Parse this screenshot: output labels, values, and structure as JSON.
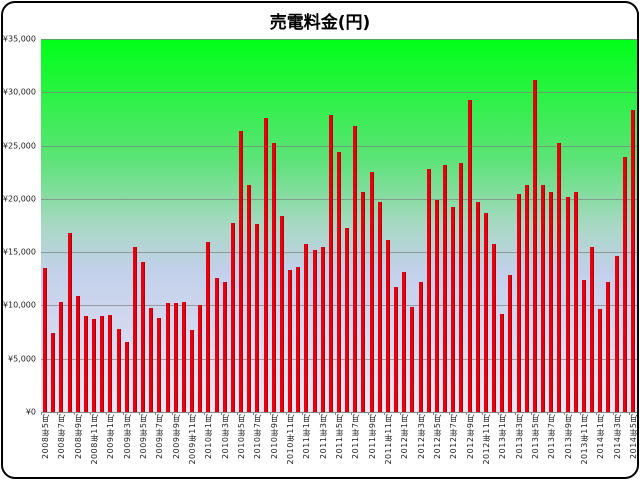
{
  "chart_data": {
    "type": "bar",
    "title": "売電料金(円)",
    "xlabel": "",
    "ylabel": "",
    "ylim": [
      0,
      35000
    ],
    "yticks": [
      "¥0",
      "¥5,000",
      "¥10,000",
      "¥15,000",
      "¥20,000",
      "¥25,000",
      "¥30,000",
      "¥35,000"
    ],
    "grid": true,
    "legend": "none",
    "bar_color": "#e8000e",
    "background_gradient": [
      "#00ff18",
      "#c2d0ea",
      "#ebe6f2"
    ],
    "categories": [
      "2008年5月",
      "2008年6月",
      "2008年7月",
      "2008年8月",
      "2008年9月",
      "2008年10月",
      "2008年11月",
      "2008年12月",
      "2009年1月",
      "2009年2月",
      "2009年3月",
      "2009年4月",
      "2009年5月",
      "2009年6月",
      "2009年7月",
      "2009年8月",
      "2009年9月",
      "2009年10月",
      "2009年11月",
      "2009年12月",
      "2010年1月",
      "2010年2月",
      "2010年3月",
      "2010年4月",
      "2010年5月",
      "2010年6月",
      "2010年7月",
      "2010年8月",
      "2010年9月",
      "2010年10月",
      "2010年11月",
      "2010年12月",
      "2011年1月",
      "2011年2月",
      "2011年3月",
      "2011年4月",
      "2011年5月",
      "2011年6月",
      "2011年7月",
      "2011年8月",
      "2011年9月",
      "2011年10月",
      "2011年11月",
      "2011年12月",
      "2012年1月",
      "2012年2月",
      "2012年3月",
      "2012年4月",
      "2012年5月",
      "2012年6月",
      "2012年7月",
      "2012年8月",
      "2012年9月",
      "2012年10月",
      "2012年11月",
      "2012年12月",
      "2013年1月",
      "2013年2月",
      "2013年3月",
      "2013年4月",
      "2013年5月",
      "2013年6月",
      "2013年7月",
      "2013年8月",
      "2013年9月",
      "2013年10月",
      "2013年11月",
      "2013年12月",
      "2014年1月",
      "2014年2月",
      "2014年3月",
      "2014年4月",
      "2014年5月"
    ],
    "values": [
      13500,
      7400,
      10300,
      16800,
      10900,
      9000,
      8700,
      9000,
      9100,
      7800,
      6600,
      15500,
      14100,
      9800,
      8800,
      10200,
      10200,
      10300,
      7700,
      10000,
      16000,
      12600,
      12200,
      17700,
      26400,
      21300,
      17600,
      27600,
      25200,
      18400,
      13300,
      13600,
      15800,
      15200,
      15500,
      27900,
      24400,
      17300,
      26800,
      20600,
      22500,
      19700,
      16100,
      11700,
      13100,
      9900,
      12200,
      22800,
      19900,
      23200,
      19200,
      23400,
      29300,
      19700,
      18700,
      15800,
      9200,
      12900,
      20500,
      21300,
      31200,
      21300,
      20600,
      25200,
      20200,
      20600,
      12400,
      15500,
      9700,
      12200,
      14600,
      23900,
      28300
    ],
    "xtick_labels": [
      "2008年5月",
      "2008年7月",
      "2008年9月",
      "2008年11月",
      "2009年1月",
      "2009年3月",
      "2009年5月",
      "2009年7月",
      "2009年9月",
      "2009年11月",
      "2010年1月",
      "2010年3月",
      "2010年5月",
      "2010年7月",
      "2010年9月",
      "2010年11月",
      "2011年1月",
      "2011年3月",
      "2011年5月",
      "2011年7月",
      "2011年9月",
      "2011年11月",
      "2012年1月",
      "2012年3月",
      "2012年5月",
      "2012年7月",
      "2012年9月",
      "2012年11月",
      "2013年1月",
      "2013年3月",
      "2013年5月",
      "2013年7月",
      "2013年9月",
      "2013年11月",
      "2014年1月",
      "2014年3月",
      "2014年5月"
    ]
  }
}
